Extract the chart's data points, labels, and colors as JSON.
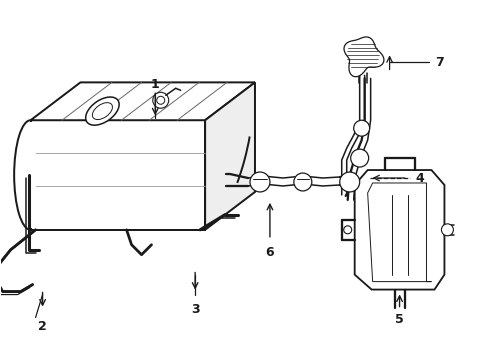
{
  "bg_color": "#ffffff",
  "line_color": "#1a1a1a",
  "line_width": 1.1,
  "label_fontsize": 9,
  "figsize": [
    4.9,
    3.6
  ],
  "dpi": 100
}
